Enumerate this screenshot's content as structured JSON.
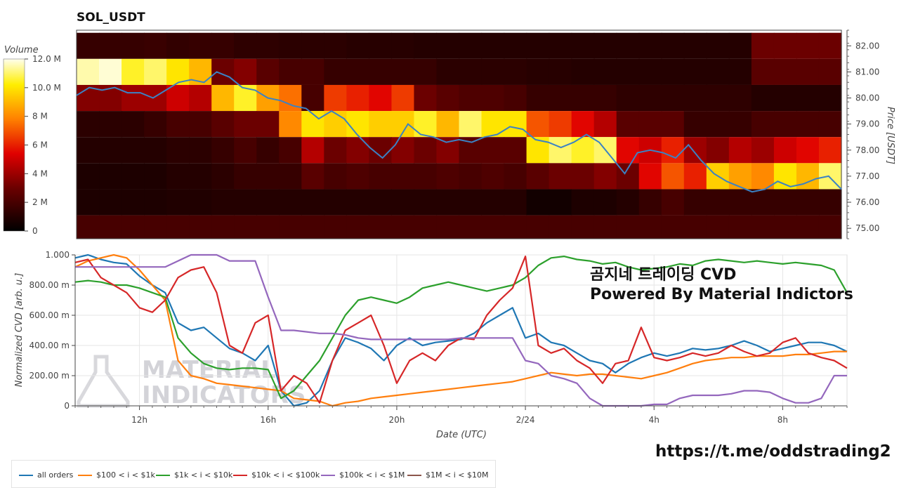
{
  "title": "SOL_USDT",
  "watermark_title": "곰지네 트레이딩 CVD",
  "watermark_subtitle": "Powered By Material Indictors",
  "telegram_link": "https://t.me/oddstrading2",
  "logo_text": [
    "MATERIAL",
    "INDICATORS"
  ],
  "colors": {
    "price_line": "#3b82c4",
    "series": [
      "#1f77b4",
      "#ff7f0e",
      "#2ca02c",
      "#d62728",
      "#9467bd",
      "#8c564b"
    ]
  },
  "chart_data": [
    {
      "type": "heatmap",
      "title": "SOL_USDT",
      "colorbar": {
        "label": "Volume",
        "ticks": [
          "0",
          "2 M",
          "4 M",
          "6 M",
          "8 M",
          "10.0 M",
          "12.0 M"
        ],
        "range": [
          0,
          12000000
        ]
      },
      "y_axis": {
        "label": "Price [USDT]",
        "ticks": [
          "75.00",
          "76.00",
          "77.00",
          "78.00",
          "79.00",
          "80.00",
          "81.00",
          "82.00"
        ],
        "range": [
          74.6,
          82.6
        ]
      },
      "price_bands": [
        82.0,
        81.0,
        80.0,
        79.0,
        78.0,
        77.0,
        76.0,
        75.0
      ],
      "volume_matrix_millions": [
        [
          1.5,
          1.5,
          1.5,
          1.6,
          1.4,
          1.5,
          1.5,
          1.3,
          1.3,
          1.2,
          1.2,
          1.2,
          1.1,
          1.1,
          1.1,
          1.0,
          1.0,
          1.0,
          1.0,
          1.0,
          1.0,
          1.0,
          1.0,
          1.0,
          1.0,
          1.0,
          1.0,
          1.0,
          1.0,
          1.0,
          3.0,
          3.0,
          3.0,
          3.0
        ],
        [
          11.5,
          11.8,
          10.5,
          11.0,
          10.0,
          9.0,
          3.0,
          3.5,
          2.5,
          2.0,
          2.0,
          1.5,
          1.5,
          1.5,
          1.5,
          1.5,
          1.2,
          1.2,
          1.2,
          1.2,
          1.1,
          1.1,
          1.0,
          1.0,
          1.0,
          1.0,
          1.0,
          1.0,
          1.0,
          1.0,
          2.5,
          2.5,
          2.5,
          2.5
        ],
        [
          3.5,
          3.5,
          4.0,
          4.0,
          5.0,
          4.5,
          9.0,
          10.5,
          8.5,
          7.5,
          2.0,
          6.5,
          6.0,
          5.5,
          6.5,
          3.0,
          2.5,
          2.2,
          2.2,
          2.0,
          1.5,
          1.5,
          1.5,
          1.5,
          1.3,
          1.3,
          1.3,
          1.3,
          1.3,
          1.3,
          1.0,
          1.0,
          1.0,
          1.0
        ],
        [
          1.2,
          1.2,
          1.2,
          1.5,
          2.0,
          2.0,
          2.5,
          3.0,
          3.0,
          8.0,
          10.0,
          9.5,
          10.0,
          9.5,
          9.5,
          10.5,
          9.0,
          11.0,
          10.0,
          10.0,
          7.0,
          6.5,
          5.5,
          4.5,
          2.5,
          2.5,
          2.5,
          1.5,
          1.5,
          1.5,
          2.0,
          2.0,
          2.0,
          2.0
        ],
        [
          1.0,
          1.0,
          1.0,
          1.0,
          1.2,
          1.2,
          1.5,
          2.0,
          1.5,
          2.0,
          4.5,
          3.0,
          3.5,
          3.0,
          3.5,
          3.0,
          3.5,
          2.5,
          2.5,
          2.5,
          10.0,
          11.0,
          10.5,
          11.0,
          5.5,
          5.0,
          6.0,
          4.0,
          3.5,
          4.5,
          4.0,
          5.0,
          5.5,
          6.0
        ],
        [
          0.8,
          0.8,
          0.8,
          0.8,
          1.0,
          1.0,
          1.2,
          1.5,
          1.5,
          1.5,
          2.5,
          2.0,
          2.2,
          2.0,
          2.0,
          2.0,
          2.2,
          2.0,
          2.2,
          2.0,
          2.5,
          3.0,
          3.0,
          3.5,
          3.0,
          5.5,
          7.0,
          6.0,
          9.5,
          8.5,
          8.0,
          10.0,
          9.0,
          11.0
        ],
        [
          0.8,
          0.8,
          0.8,
          0.8,
          0.9,
          0.9,
          1.0,
          1.0,
          1.0,
          1.0,
          1.0,
          1.0,
          1.0,
          1.0,
          1.0,
          1.0,
          1.0,
          1.0,
          1.0,
          1.0,
          0.5,
          0.5,
          0.8,
          0.8,
          1.0,
          1.5,
          2.0,
          1.5,
          1.5,
          1.5,
          1.5,
          1.5,
          1.5,
          1.5
        ],
        [
          2.0,
          2.0,
          2.0,
          2.0,
          2.0,
          2.0,
          2.0,
          2.0,
          2.0,
          2.0,
          2.0,
          2.0,
          2.0,
          2.0,
          2.0,
          2.0,
          2.0,
          2.0,
          2.0,
          2.0,
          2.0,
          2.0,
          2.0,
          2.0,
          2.0,
          2.0,
          2.0,
          2.0,
          2.0,
          2.0,
          2.0,
          2.0,
          2.0,
          2.0
        ]
      ],
      "price_series": {
        "x_hours": [
          0,
          0.5,
          1,
          1.5,
          2,
          2.5,
          3,
          3.5,
          4,
          4.5,
          5,
          5.5,
          6,
          6.5,
          7,
          7.5,
          8,
          8.5,
          9,
          9.5,
          10,
          10.5,
          11,
          11.5,
          12,
          12.5,
          13,
          13.5,
          14,
          14.5,
          15,
          15.5,
          16,
          16.5,
          17,
          17.5,
          18,
          18.5,
          19,
          19.5,
          20,
          20.5,
          21,
          21.5,
          22,
          22.5,
          23,
          23.5,
          24,
          24.5,
          25,
          25.5,
          26,
          26.5,
          27,
          27.5,
          28,
          28.5,
          29,
          29.5,
          30
        ],
        "y": [
          80.1,
          80.4,
          80.3,
          80.4,
          80.2,
          80.2,
          80.0,
          80.3,
          80.6,
          80.7,
          80.6,
          81.0,
          80.8,
          80.4,
          80.3,
          80.0,
          79.9,
          79.7,
          79.6,
          79.2,
          79.5,
          79.2,
          78.6,
          78.1,
          77.7,
          78.2,
          79.0,
          78.6,
          78.5,
          78.3,
          78.4,
          78.3,
          78.5,
          78.6,
          78.9,
          78.8,
          78.4,
          78.3,
          78.1,
          78.3,
          78.6,
          78.3,
          77.7,
          77.1,
          77.9,
          78.0,
          77.9,
          77.7,
          78.2,
          77.6,
          77.1,
          76.8,
          76.6,
          76.4,
          76.5,
          76.8,
          76.6,
          76.7,
          76.9,
          77.0,
          76.5
        ]
      }
    },
    {
      "type": "line",
      "ylabel": "Normalized CVD [arb. u.]",
      "xlabel": "Date (UTC)",
      "x_ticks": [
        {
          "label": "12h",
          "hour": 2.5
        },
        {
          "label": "16h",
          "hour": 7.5
        },
        {
          "label": "20h",
          "hour": 12.5
        },
        {
          "label": "2/24",
          "hour": 17.5
        },
        {
          "label": "4h",
          "hour": 22.5
        },
        {
          "label": "8h",
          "hour": 27.5
        }
      ],
      "xlim_hours": [
        0,
        30
      ],
      "y_ticks": [
        "0",
        "200.00 m",
        "400.00 m",
        "600.00 m",
        "800.00 m",
        "1.000"
      ],
      "ylim": [
        0,
        1.0
      ],
      "grid": true,
      "legend": "bottom",
      "series": [
        {
          "name": "all orders",
          "color": "#1f77b4",
          "values": [
            0.98,
            1.0,
            0.97,
            0.95,
            0.94,
            0.86,
            0.8,
            0.75,
            0.55,
            0.5,
            0.52,
            0.45,
            0.38,
            0.35,
            0.3,
            0.4,
            0.1,
            0.0,
            0.02,
            0.1,
            0.3,
            0.45,
            0.42,
            0.38,
            0.3,
            0.4,
            0.45,
            0.4,
            0.42,
            0.43,
            0.44,
            0.48,
            0.55,
            0.6,
            0.65,
            0.45,
            0.48,
            0.42,
            0.4,
            0.35,
            0.3,
            0.28,
            0.22,
            0.28,
            0.32,
            0.35,
            0.33,
            0.35,
            0.38,
            0.37,
            0.38,
            0.4,
            0.43,
            0.4,
            0.36,
            0.38,
            0.4,
            0.42,
            0.42,
            0.4,
            0.36
          ]
        },
        {
          "name": "$100 < i < $1k",
          "color": "#ff7f0e",
          "values": [
            0.92,
            0.96,
            0.98,
            1.0,
            0.98,
            0.9,
            0.8,
            0.7,
            0.3,
            0.2,
            0.18,
            0.15,
            0.14,
            0.13,
            0.12,
            0.11,
            0.1,
            0.05,
            0.04,
            0.03,
            0.0,
            0.02,
            0.03,
            0.05,
            0.06,
            0.07,
            0.08,
            0.09,
            0.1,
            0.11,
            0.12,
            0.13,
            0.14,
            0.15,
            0.16,
            0.18,
            0.2,
            0.22,
            0.21,
            0.2,
            0.21,
            0.21,
            0.2,
            0.19,
            0.18,
            0.2,
            0.22,
            0.25,
            0.28,
            0.3,
            0.31,
            0.32,
            0.32,
            0.33,
            0.33,
            0.33,
            0.34,
            0.34,
            0.35,
            0.36,
            0.36
          ]
        },
        {
          "name": "$1k < i < $10k",
          "color": "#2ca02c",
          "values": [
            0.82,
            0.83,
            0.82,
            0.8,
            0.8,
            0.78,
            0.75,
            0.72,
            0.45,
            0.35,
            0.28,
            0.25,
            0.24,
            0.25,
            0.25,
            0.24,
            0.05,
            0.1,
            0.2,
            0.3,
            0.45,
            0.6,
            0.7,
            0.72,
            0.7,
            0.68,
            0.72,
            0.78,
            0.8,
            0.82,
            0.8,
            0.78,
            0.76,
            0.78,
            0.8,
            0.85,
            0.93,
            0.98,
            0.99,
            0.97,
            0.96,
            0.94,
            0.95,
            0.92,
            0.9,
            0.91,
            0.92,
            0.94,
            0.93,
            0.96,
            0.97,
            0.96,
            0.95,
            0.96,
            0.95,
            0.94,
            0.95,
            0.94,
            0.93,
            0.9,
            0.75
          ]
        },
        {
          "name": "$10k < i < $100k",
          "color": "#d62728",
          "values": [
            0.95,
            0.97,
            0.85,
            0.8,
            0.75,
            0.65,
            0.62,
            0.7,
            0.85,
            0.9,
            0.92,
            0.75,
            0.4,
            0.35,
            0.55,
            0.6,
            0.1,
            0.2,
            0.15,
            0.02,
            0.3,
            0.5,
            0.55,
            0.6,
            0.4,
            0.15,
            0.3,
            0.35,
            0.3,
            0.4,
            0.45,
            0.44,
            0.6,
            0.7,
            0.78,
            0.99,
            0.4,
            0.35,
            0.38,
            0.3,
            0.25,
            0.15,
            0.28,
            0.3,
            0.52,
            0.32,
            0.3,
            0.32,
            0.35,
            0.33,
            0.35,
            0.4,
            0.36,
            0.33,
            0.35,
            0.42,
            0.45,
            0.35,
            0.32,
            0.3,
            0.25
          ]
        },
        {
          "name": "$100k < i < $1M",
          "color": "#9467bd",
          "values": [
            0.92,
            0.92,
            0.92,
            0.92,
            0.92,
            0.92,
            0.92,
            0.92,
            0.96,
            1.0,
            1.0,
            1.0,
            0.96,
            0.96,
            0.96,
            0.72,
            0.5,
            0.5,
            0.49,
            0.48,
            0.48,
            0.47,
            0.45,
            0.44,
            0.44,
            0.44,
            0.44,
            0.44,
            0.44,
            0.44,
            0.45,
            0.45,
            0.45,
            0.45,
            0.45,
            0.3,
            0.28,
            0.2,
            0.18,
            0.15,
            0.05,
            0.0,
            0.0,
            0.0,
            0.0,
            0.01,
            0.01,
            0.05,
            0.07,
            0.07,
            0.07,
            0.08,
            0.1,
            0.1,
            0.09,
            0.05,
            0.02,
            0.02,
            0.05,
            0.2,
            0.2
          ]
        },
        {
          "name": "$1M < i < $10M",
          "color": "#8c564b",
          "values": []
        }
      ]
    }
  ]
}
